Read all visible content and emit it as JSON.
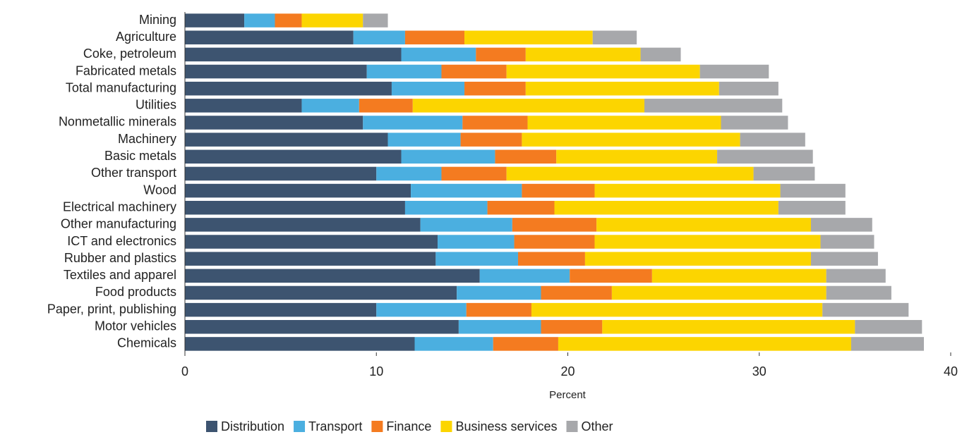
{
  "chart_data": {
    "type": "stacked_barh",
    "xlabel": "Percent",
    "categories": [
      "Mining",
      "Agriculture",
      "Coke, petroleum",
      "Fabricated metals",
      "Total manufacturing",
      "Utilities",
      "Nonmetallic minerals",
      "Machinery",
      "Basic metals",
      "Other transport",
      "Wood",
      "Electrical machinery",
      "Other manufacturing",
      "ICT and electronics",
      "Rubber and plastics",
      "Textiles and apparel",
      "Food products",
      "Paper, print, publishing",
      "Motor vehicles",
      "Chemicals"
    ],
    "series": [
      {
        "name": "Distribution",
        "color": "#3d5470",
        "values": [
          3.1,
          8.8,
          11.3,
          9.5,
          10.8,
          6.1,
          9.3,
          10.6,
          11.3,
          10.0,
          11.8,
          11.5,
          12.3,
          13.2,
          13.1,
          15.4,
          14.2,
          10.0,
          14.3,
          12.0
        ]
      },
      {
        "name": "Transport",
        "color": "#4bafe0",
        "values": [
          1.6,
          2.7,
          3.9,
          3.9,
          3.8,
          3.0,
          5.2,
          3.8,
          4.9,
          3.4,
          5.8,
          4.3,
          4.8,
          4.0,
          4.3,
          4.7,
          4.4,
          4.7,
          4.3,
          4.1
        ]
      },
      {
        "name": "Finance",
        "color": "#f47b20",
        "values": [
          1.4,
          3.1,
          2.6,
          3.4,
          3.2,
          2.8,
          3.4,
          3.2,
          3.2,
          3.4,
          3.8,
          3.5,
          4.4,
          4.2,
          3.5,
          4.3,
          3.7,
          3.4,
          3.2,
          3.4
        ]
      },
      {
        "name": "Business services",
        "color": "#fcd500",
        "values": [
          3.2,
          6.7,
          6.0,
          10.1,
          10.1,
          12.1,
          10.1,
          11.4,
          8.4,
          12.9,
          9.7,
          11.7,
          11.2,
          11.8,
          11.8,
          9.1,
          11.2,
          15.2,
          13.2,
          15.3
        ]
      },
      {
        "name": "Other",
        "color": "#a7a8ab",
        "values": [
          1.3,
          2.3,
          2.1,
          3.6,
          3.1,
          7.2,
          3.5,
          3.4,
          5.0,
          3.2,
          3.4,
          3.5,
          3.2,
          2.8,
          3.5,
          3.1,
          3.4,
          4.5,
          3.5,
          3.8
        ]
      }
    ],
    "xlim": [
      0,
      40
    ],
    "xticks": [
      0,
      10,
      20,
      30,
      40
    ],
    "grid": false,
    "legend": "bottom"
  }
}
